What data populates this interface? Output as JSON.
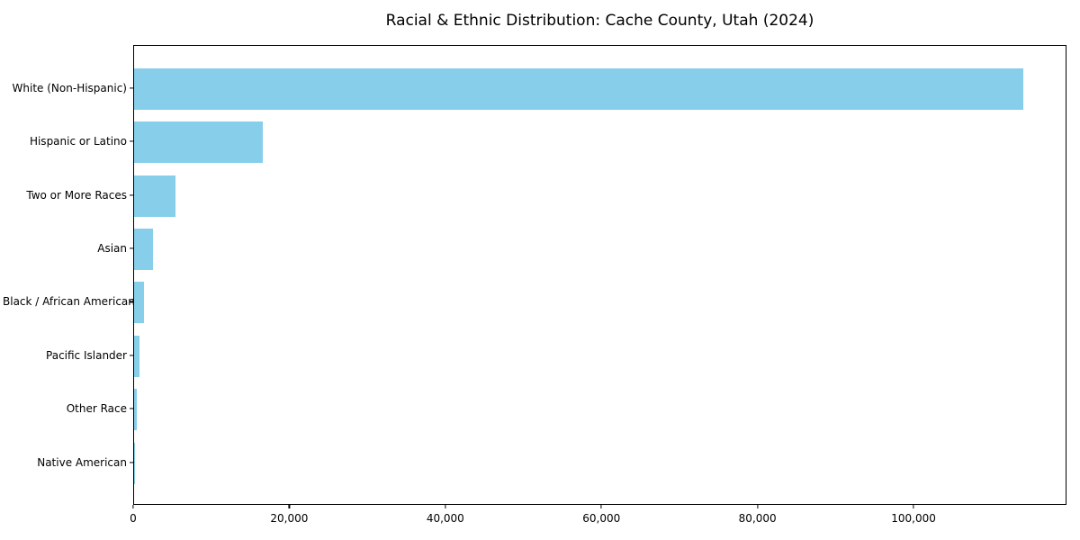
{
  "chart_data": {
    "type": "bar",
    "orientation": "horizontal",
    "title": "Racial & Ethnic Distribution: Cache County, Utah (2024)",
    "categories": [
      "White (Non-Hispanic)",
      "Hispanic or Latino",
      "Two or More Races",
      "Asian",
      "Black / African American",
      "Pacific Islander",
      "Other Race",
      "Native American"
    ],
    "values": [
      113900,
      16450,
      5300,
      2450,
      1250,
      730,
      380,
      100
    ],
    "xlabel": "",
    "ylabel": "",
    "xlim": [
      0,
      119595
    ],
    "xticks": [
      0,
      20000,
      40000,
      60000,
      80000,
      100000
    ],
    "xtick_labels": [
      "0",
      "20,000",
      "40,000",
      "60,000",
      "80,000",
      "100,000"
    ],
    "grid": false,
    "legend": null,
    "bar_color": "#87CEEB",
    "axis_color": "#000000",
    "background_color": "#ffffff"
  }
}
